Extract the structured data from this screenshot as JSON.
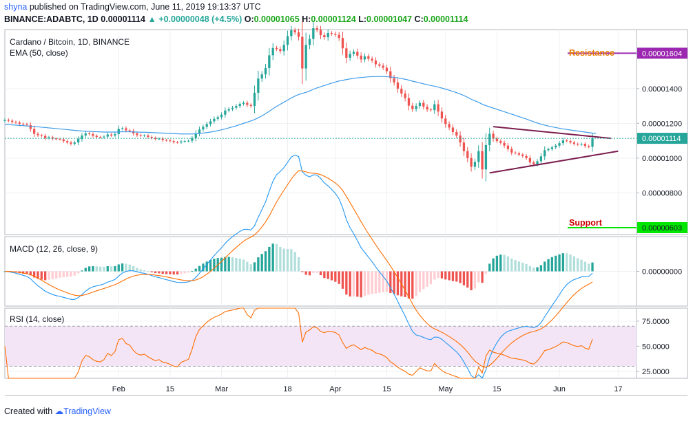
{
  "header": {
    "user": "shyna",
    "published": "published on TradingView.com, June 11, 2019 19:13:37 UTC",
    "symbol": "BINANCE:ADABTC, 1D",
    "last": "0.00001114",
    "change": "+0.00000048 (+4.5%)",
    "o_label": "O:",
    "o": "0.00001065",
    "h_label": "H:",
    "h": "0.00001124",
    "l_label": "L:",
    "l": "0.00001047",
    "c_label": "C:",
    "c": "0.00001114"
  },
  "footer": {
    "created_with": "Created with",
    "brand": "TradingView"
  },
  "colors": {
    "up": "#26a69a",
    "down": "#ef5350",
    "ema": "#3d9be9",
    "macd": "#2196f3",
    "signal": "#ff6d00",
    "rsi": "#ff6d00",
    "rsi_band": "#f3e5f5",
    "triangle": "#7b1d4e",
    "resistance": "#9c27b0",
    "support": "#00e600",
    "resistance_text": "#e67e00",
    "support_text": "#cc0000"
  },
  "chart_data": [
    {
      "type": "candlestick",
      "title": "Cardano / Bitcoin, 1D, BINANCE",
      "indicator": "EMA (50, close)",
      "ylim": [
        5.6e-06,
        1.74e-05
      ],
      "y_ticks": [
        "0.00000800",
        "0.00001000",
        "0.00001200",
        "0.00001400"
      ],
      "y_tick_values": [
        8e-06,
        1e-05,
        1.2e-05,
        1.4e-05
      ],
      "x_ticks": [
        "Feb",
        "15",
        "Mar",
        "18",
        "Apr",
        "15",
        "May",
        "15",
        "Jun",
        "17"
      ],
      "x_tick_days": [
        31,
        45,
        59,
        77,
        90,
        104,
        120,
        134,
        151,
        167
      ],
      "x_range_days": [
        0,
        172
      ],
      "candles_start_day": 0,
      "close": [
        1220,
        1215,
        1208,
        1205,
        1198,
        1195,
        1190,
        1168,
        1140,
        1132,
        1128,
        1115,
        1120,
        1112,
        1110,
        1108,
        1098,
        1090,
        1082,
        1090,
        1110,
        1130,
        1142,
        1138,
        1128,
        1122,
        1120,
        1124,
        1136,
        1130,
        1138,
        1168,
        1172,
        1160,
        1156,
        1142,
        1132,
        1128,
        1130,
        1122,
        1116,
        1110,
        1112,
        1104,
        1102,
        1098,
        1092,
        1090,
        1096,
        1098,
        1100,
        1115,
        1142,
        1165,
        1180,
        1196,
        1212,
        1226,
        1236,
        1250,
        1274,
        1282,
        1290,
        1300,
        1312,
        1318,
        1306,
        1300,
        1376,
        1458,
        1482,
        1518,
        1592,
        1634,
        1628,
        1616,
        1652,
        1702,
        1736,
        1724,
        1698,
        1516,
        1652,
        1686,
        1748,
        1738,
        1708,
        1696,
        1720,
        1716,
        1710,
        1692,
        1632,
        1578,
        1600,
        1612,
        1590,
        1568,
        1586,
        1572,
        1562,
        1540,
        1532,
        1520,
        1500,
        1460,
        1436,
        1400,
        1372,
        1346,
        1302,
        1282,
        1300,
        1318,
        1296,
        1280,
        1276,
        1310,
        1268,
        1228,
        1196,
        1176,
        1150,
        1130,
        1090,
        1040,
        1000,
        950,
        978,
        1040,
        935,
        1075,
        1140,
        1112,
        1098,
        1088,
        1072,
        1052,
        1032,
        1028,
        1020,
        1012,
        1000,
        975,
        965,
        982,
        1010,
        1046,
        1052,
        1062,
        1072,
        1086,
        1102,
        1098,
        1090,
        1082,
        1078,
        1082,
        1070,
        1065,
        1114
      ],
      "ema": [
        1195,
        1193,
        1191,
        1190,
        1188,
        1187,
        1185,
        1184,
        1182,
        1180,
        1178,
        1176,
        1174,
        1172,
        1170,
        1168,
        1166,
        1164,
        1162,
        1160,
        1158,
        1156,
        1155,
        1154,
        1153,
        1152,
        1151,
        1150,
        1150,
        1150,
        1150,
        1151,
        1152,
        1152,
        1152,
        1151,
        1150,
        1149,
        1149,
        1148,
        1147,
        1146,
        1145,
        1144,
        1143,
        1142,
        1141,
        1140,
        1139,
        1139,
        1139,
        1139,
        1140,
        1142,
        1144,
        1147,
        1150,
        1154,
        1158,
        1163,
        1168,
        1174,
        1180,
        1186,
        1193,
        1200,
        1207,
        1214,
        1222,
        1232,
        1243,
        1256,
        1270,
        1284,
        1298,
        1310,
        1322,
        1334,
        1346,
        1357,
        1366,
        1372,
        1379,
        1387,
        1396,
        1404,
        1411,
        1418,
        1425,
        1432,
        1438,
        1444,
        1448,
        1452,
        1456,
        1459,
        1462,
        1464,
        1466,
        1468,
        1469,
        1470,
        1470,
        1470,
        1469,
        1467,
        1465,
        1462,
        1458,
        1454,
        1449,
        1443,
        1438,
        1433,
        1428,
        1423,
        1418,
        1414,
        1409,
        1403,
        1397,
        1391,
        1384,
        1377,
        1369,
        1360,
        1350,
        1339,
        1330,
        1321,
        1310,
        1302,
        1295,
        1288,
        1281,
        1274,
        1267,
        1260,
        1253,
        1246,
        1239,
        1232,
        1225,
        1217,
        1209,
        1202,
        1195,
        1190,
        1185,
        1180,
        1176,
        1172,
        1168,
        1165,
        1162,
        1159,
        1156,
        1153,
        1150,
        1147,
        1144,
        1143
      ],
      "close_unit": 1e-08,
      "last_price": "0.00001114",
      "resistance": {
        "label": "Resistance",
        "value": "0.00001604",
        "price": 1.604e-05
      },
      "support": {
        "label": "Support",
        "value": "0.00000603",
        "price": 6.03e-06
      },
      "triangle": {
        "upper": [
          [
            133,
            1.181e-05
          ],
          [
            165,
            1.114e-05
          ]
        ],
        "lower": [
          [
            132,
            9.15e-06
          ],
          [
            167,
            1.04e-05
          ]
        ]
      }
    },
    {
      "type": "macd",
      "title": "MACD (12, 26, close, 9)",
      "ylim": [
        -4e-07,
        4e-07
      ],
      "y_ticks": [
        "0.00000000"
      ],
      "y_tick_values": [
        0
      ]
    },
    {
      "type": "rsi",
      "title": "RSI (14, close)",
      "ylim": [
        18,
        88
      ],
      "band": [
        30,
        70
      ],
      "y_ticks": [
        "25.0000",
        "50.0000",
        "75.0000"
      ],
      "y_tick_values": [
        25,
        50,
        75
      ]
    }
  ]
}
